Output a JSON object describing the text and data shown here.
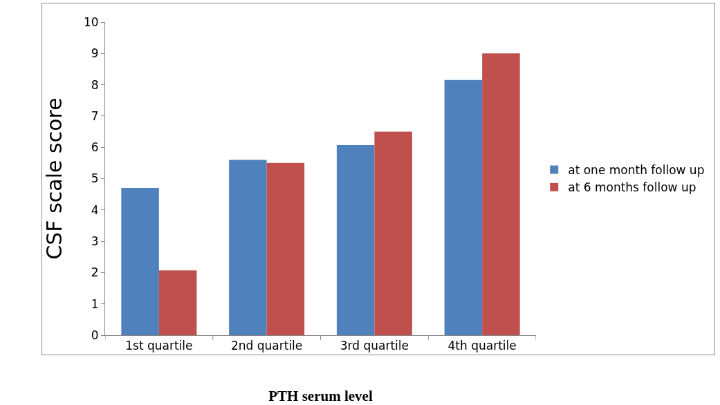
{
  "chart_data": {
    "type": "bar",
    "xlabel": "PTH serum level",
    "ylabel": "CSF scale score",
    "categories": [
      "1st quartile",
      "2nd quartile",
      "3rd quartile",
      "4th quartile"
    ],
    "series": [
      {
        "name": "at one month follow up",
        "color": "#4f81bd",
        "values": [
          4.7,
          5.6,
          6.07,
          8.15
        ]
      },
      {
        "name": "at 6 months follow up",
        "color": "#c0504d",
        "values": [
          2.07,
          5.5,
          6.5,
          9.0
        ]
      }
    ],
    "ylim": [
      0,
      10
    ],
    "yticks": [
      0,
      1,
      2,
      3,
      4,
      5,
      6,
      7,
      8,
      9,
      10
    ],
    "grid": false,
    "legend": "right"
  }
}
